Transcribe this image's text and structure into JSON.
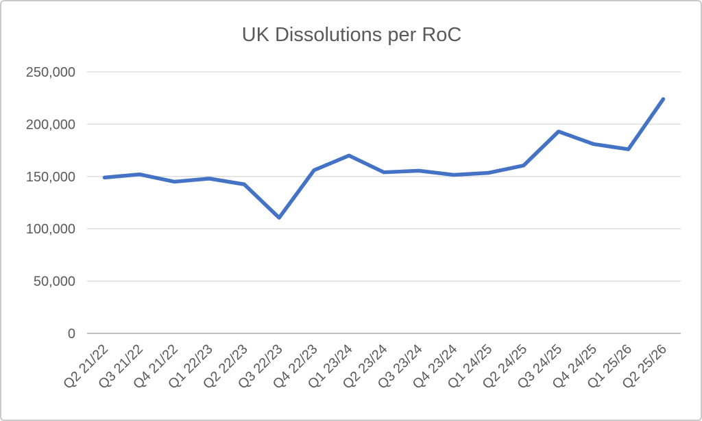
{
  "window": {
    "background_color": "#ffffff",
    "border_color": "#c9c9c9"
  },
  "chart_data": {
    "type": "line",
    "title": "UK Dissolutions per RoC",
    "categories": [
      "Q2 21/22",
      "Q3 21/22",
      "Q4 21/22",
      "Q1 22/23",
      "Q2 22/23",
      "Q3 22/23",
      "Q4 22/23",
      "Q1 23/24",
      "Q2 23/24",
      "Q3 23/24",
      "Q4 23/24",
      "Q1 24/25",
      "Q2 24/25",
      "Q3 24/25",
      "Q4 24/25",
      "Q1 25/26",
      "Q2 25/26"
    ],
    "series": [
      {
        "name": "UK Dissolutions per RoC",
        "values": [
          149000,
          152000,
          145000,
          148000,
          142500,
          110500,
          156000,
          170000,
          154000,
          155500,
          151500,
          153500,
          160500,
          193000,
          181000,
          176000,
          224000
        ]
      }
    ],
    "xlabel": "",
    "ylabel": "",
    "ylim": [
      0,
      250000
    ],
    "ytick_interval": 50000,
    "ytick_labels": [
      "0",
      "50,000",
      "100,000",
      "150,000",
      "200,000",
      "250,000"
    ],
    "grid": true,
    "legend_position": "none",
    "line_color": "#4472C4",
    "gridline_color": "#d9d9d9",
    "axis_line_color": "#bfbfbf",
    "text_color": "#595959"
  }
}
